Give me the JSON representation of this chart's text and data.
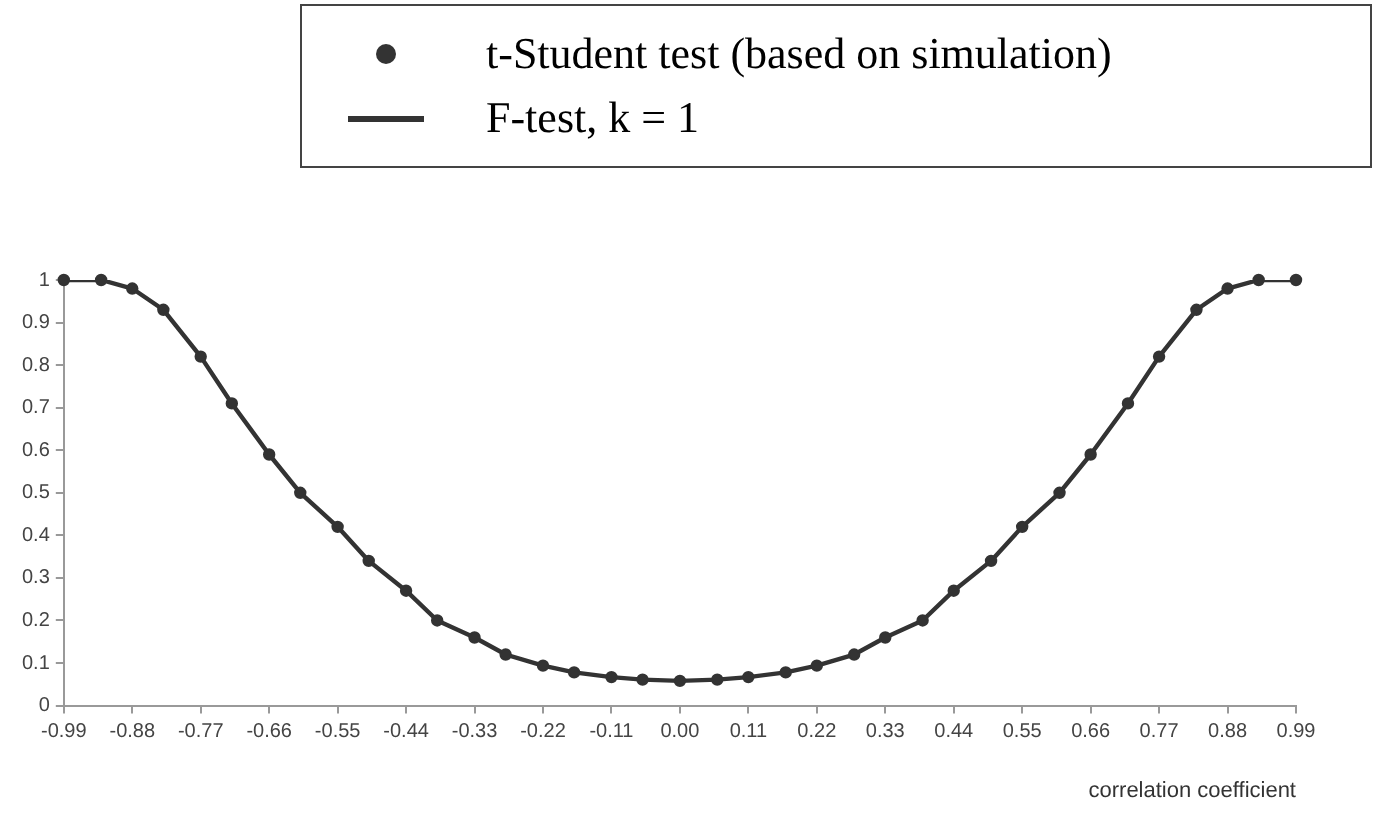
{
  "chart_data": {
    "type": "line",
    "xlabel": "correlation coefficient",
    "legend": "top right",
    "grid": false,
    "xlim": [
      -0.99,
      0.99
    ],
    "xticks": [
      -0.99,
      -0.88,
      -0.77,
      -0.66,
      -0.55,
      -0.44,
      -0.33,
      -0.22,
      -0.11,
      {
        "value": 0,
        "label": "0.00"
      },
      0.11,
      0.22,
      0.33,
      0.44,
      0.55,
      0.66,
      0.77,
      0.88,
      0.99
    ],
    "ylim": [
      0,
      1
    ],
    "yticks": [
      0,
      0.1,
      0.2,
      0.3,
      0.4,
      0.5,
      0.6,
      0.7,
      0.8,
      0.9,
      1
    ],
    "x": [
      -0.99,
      -0.93,
      -0.88,
      -0.83,
      -0.77,
      -0.72,
      -0.66,
      -0.61,
      -0.55,
      -0.5,
      -0.44,
      -0.39,
      -0.33,
      -0.28,
      -0.22,
      -0.17,
      -0.11,
      -0.06,
      0,
      0.06,
      0.11,
      0.17,
      0.22,
      0.28,
      0.33,
      0.39,
      0.44,
      0.5,
      0.55,
      0.61,
      0.66,
      0.72,
      0.77,
      0.83,
      0.88,
      0.93,
      0.99
    ],
    "series": [
      {
        "name": "t-Student test (based on simulation)",
        "type": "scatter",
        "marker": "circle",
        "color": "#333333",
        "values": [
          1,
          1,
          0.98,
          0.93,
          0.82,
          0.71,
          0.59,
          0.5,
          0.42,
          0.34,
          0.27,
          0.2,
          0.16,
          0.12,
          0.094,
          0.078,
          0.067,
          0.061,
          0.058,
          0.061,
          0.067,
          0.078,
          0.094,
          0.12,
          0.16,
          0.2,
          0.27,
          0.34,
          0.42,
          0.5,
          0.59,
          0.71,
          0.82,
          0.93,
          0.98,
          1,
          1
        ]
      },
      {
        "name": "F-test, k = 1",
        "color": "#333333",
        "values": [
          1,
          1,
          0.98,
          0.93,
          0.82,
          0.71,
          0.59,
          0.5,
          0.42,
          0.34,
          0.27,
          0.2,
          0.16,
          0.12,
          0.094,
          0.078,
          0.067,
          0.061,
          0.058,
          0.061,
          0.067,
          0.078,
          0.094,
          0.12,
          0.16,
          0.2,
          0.27,
          0.34,
          0.42,
          0.5,
          0.59,
          0.71,
          0.82,
          0.93,
          0.98,
          1,
          1
        ]
      }
    ]
  }
}
